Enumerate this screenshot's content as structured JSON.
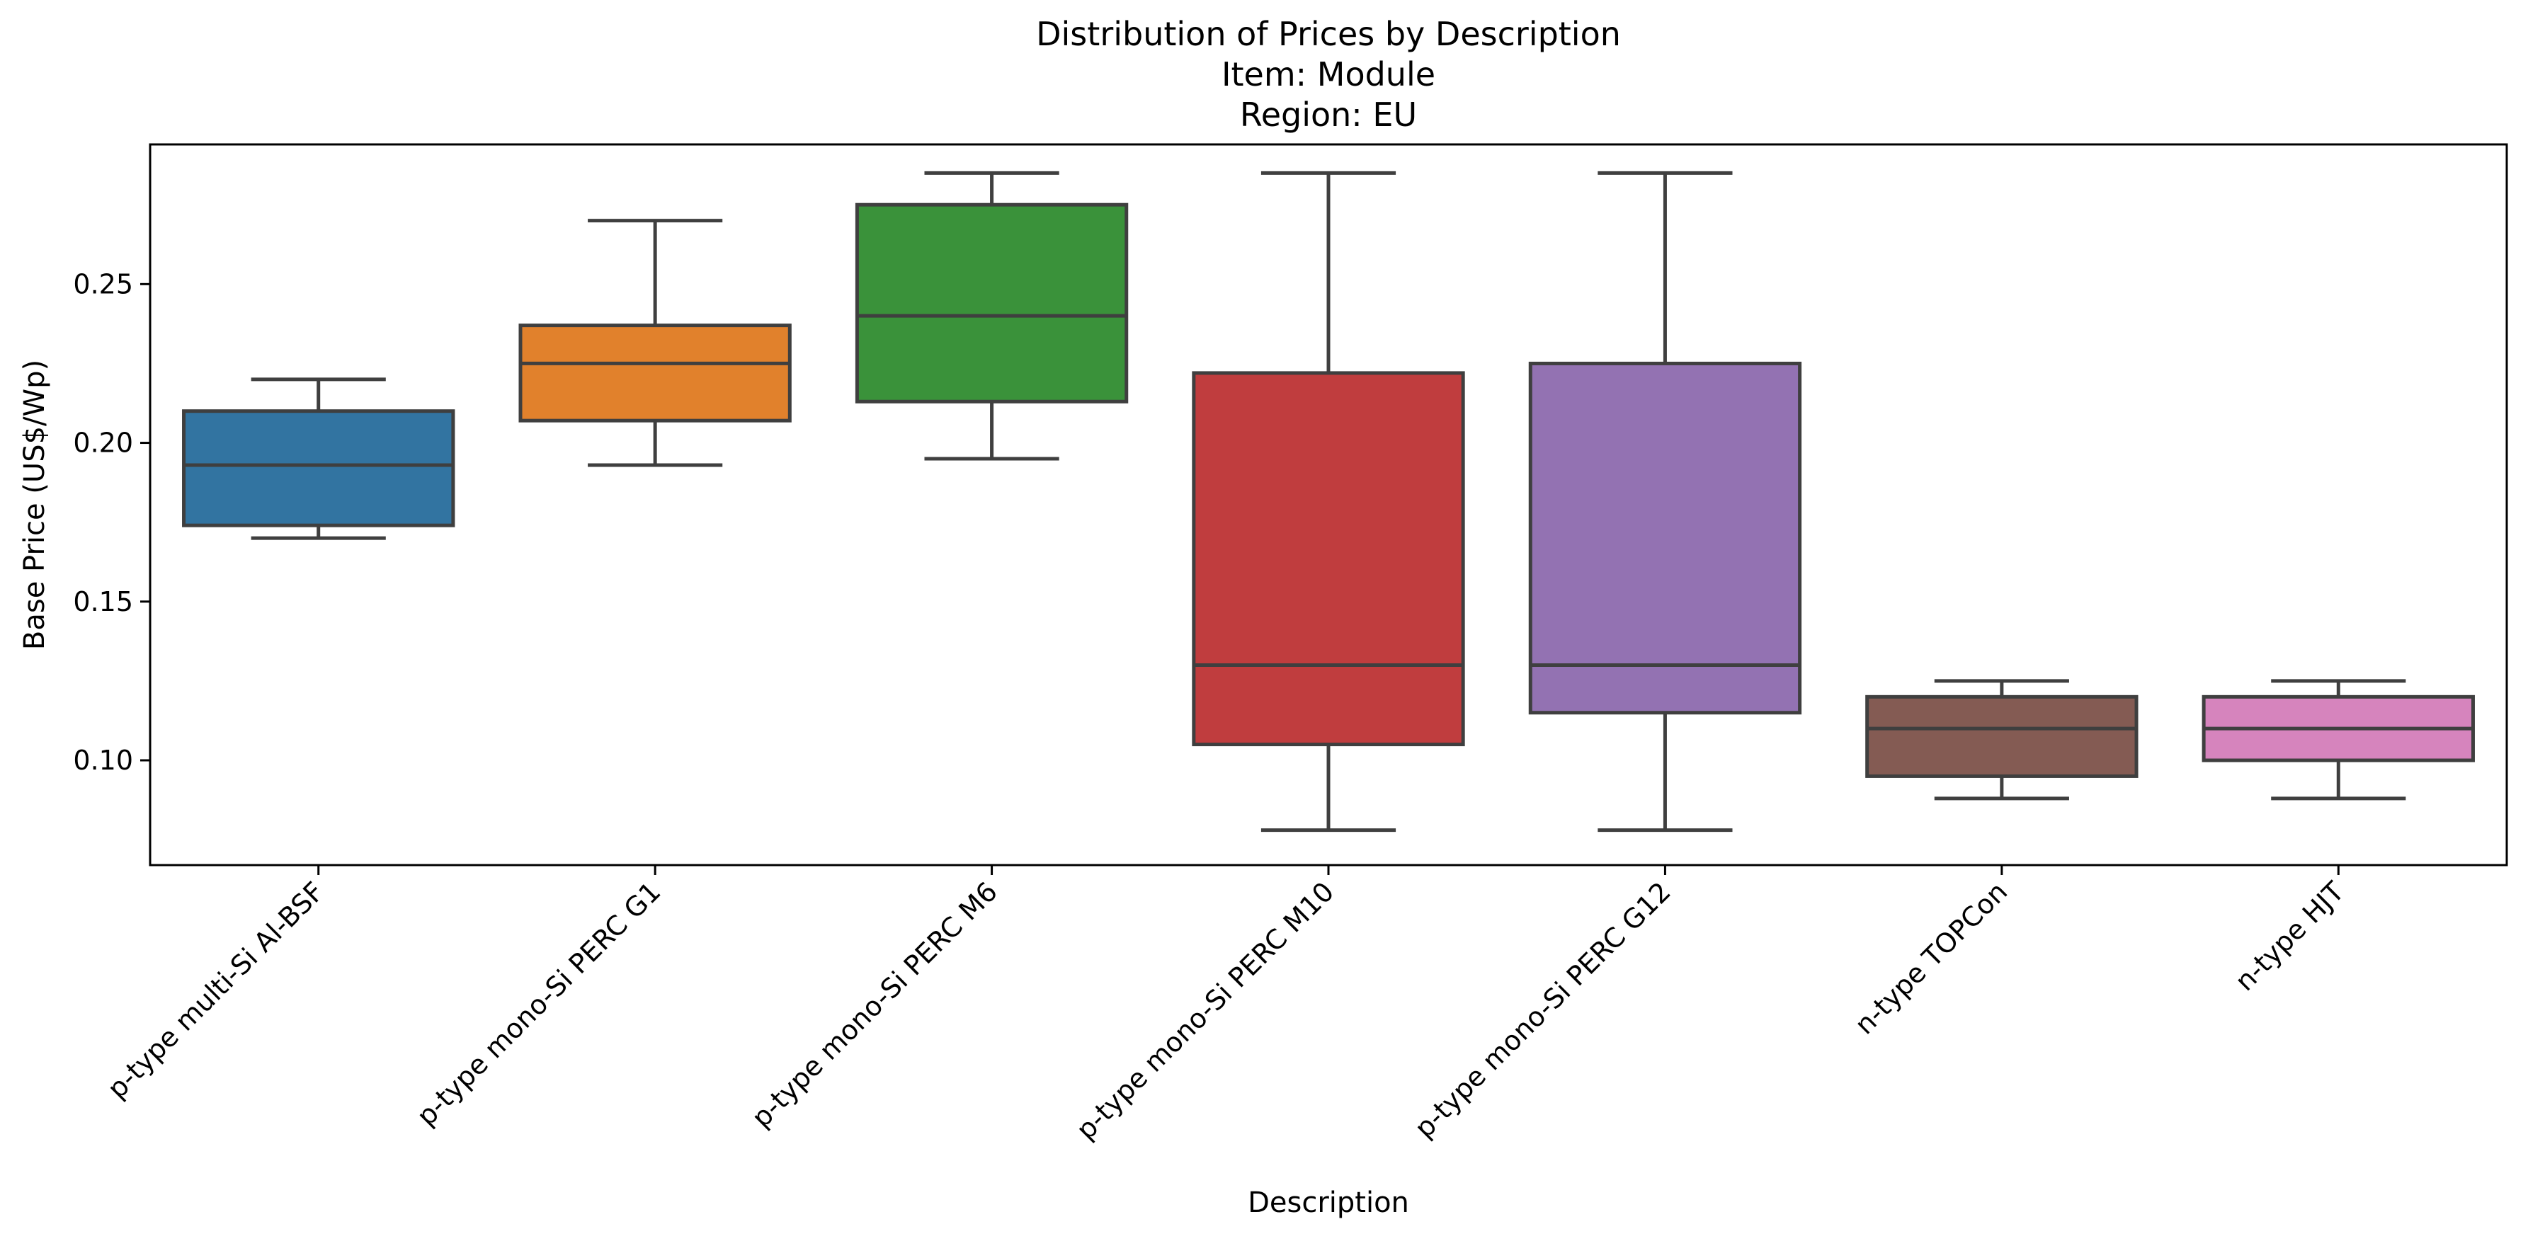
{
  "chart_data": {
    "type": "box",
    "title": [
      "Distribution of Prices by Description",
      "Item: Module",
      "Region: EU"
    ],
    "xlabel": "Description",
    "ylabel": "Base Price (US$/Wp)",
    "ylim": [
      0.067,
      0.294
    ],
    "yticks": [
      0.1,
      0.15,
      0.2,
      0.25
    ],
    "ytick_labels": [
      "0.10",
      "0.15",
      "0.20",
      "0.25"
    ],
    "grid": false,
    "categories": [
      "p-type multi-Si Al-BSF",
      "p-type mono-Si PERC G1",
      "p-type mono-Si PERC M6",
      "p-type mono-Si PERC M10",
      "p-type mono-Si PERC G12",
      "n-type TOPCon",
      "n-type HJT"
    ],
    "boxes": [
      {
        "whisker_low": 0.17,
        "q1": 0.174,
        "median": 0.193,
        "q3": 0.21,
        "whisker_high": 0.22,
        "color": "#3274a1"
      },
      {
        "whisker_low": 0.193,
        "q1": 0.207,
        "median": 0.225,
        "q3": 0.237,
        "whisker_high": 0.27,
        "color": "#e1812c"
      },
      {
        "whisker_low": 0.195,
        "q1": 0.213,
        "median": 0.24,
        "q3": 0.275,
        "whisker_high": 0.285,
        "color": "#3a923a"
      },
      {
        "whisker_low": 0.078,
        "q1": 0.105,
        "median": 0.13,
        "q3": 0.222,
        "whisker_high": 0.285,
        "color": "#c03d3e"
      },
      {
        "whisker_low": 0.078,
        "q1": 0.115,
        "median": 0.13,
        "q3": 0.225,
        "whisker_high": 0.285,
        "color": "#9372b2"
      },
      {
        "whisker_low": 0.088,
        "q1": 0.095,
        "median": 0.11,
        "q3": 0.12,
        "whisker_high": 0.125,
        "color": "#845b53"
      },
      {
        "whisker_low": 0.088,
        "q1": 0.1,
        "median": 0.11,
        "q3": 0.12,
        "whisker_high": 0.125,
        "color": "#d684bd"
      }
    ]
  }
}
